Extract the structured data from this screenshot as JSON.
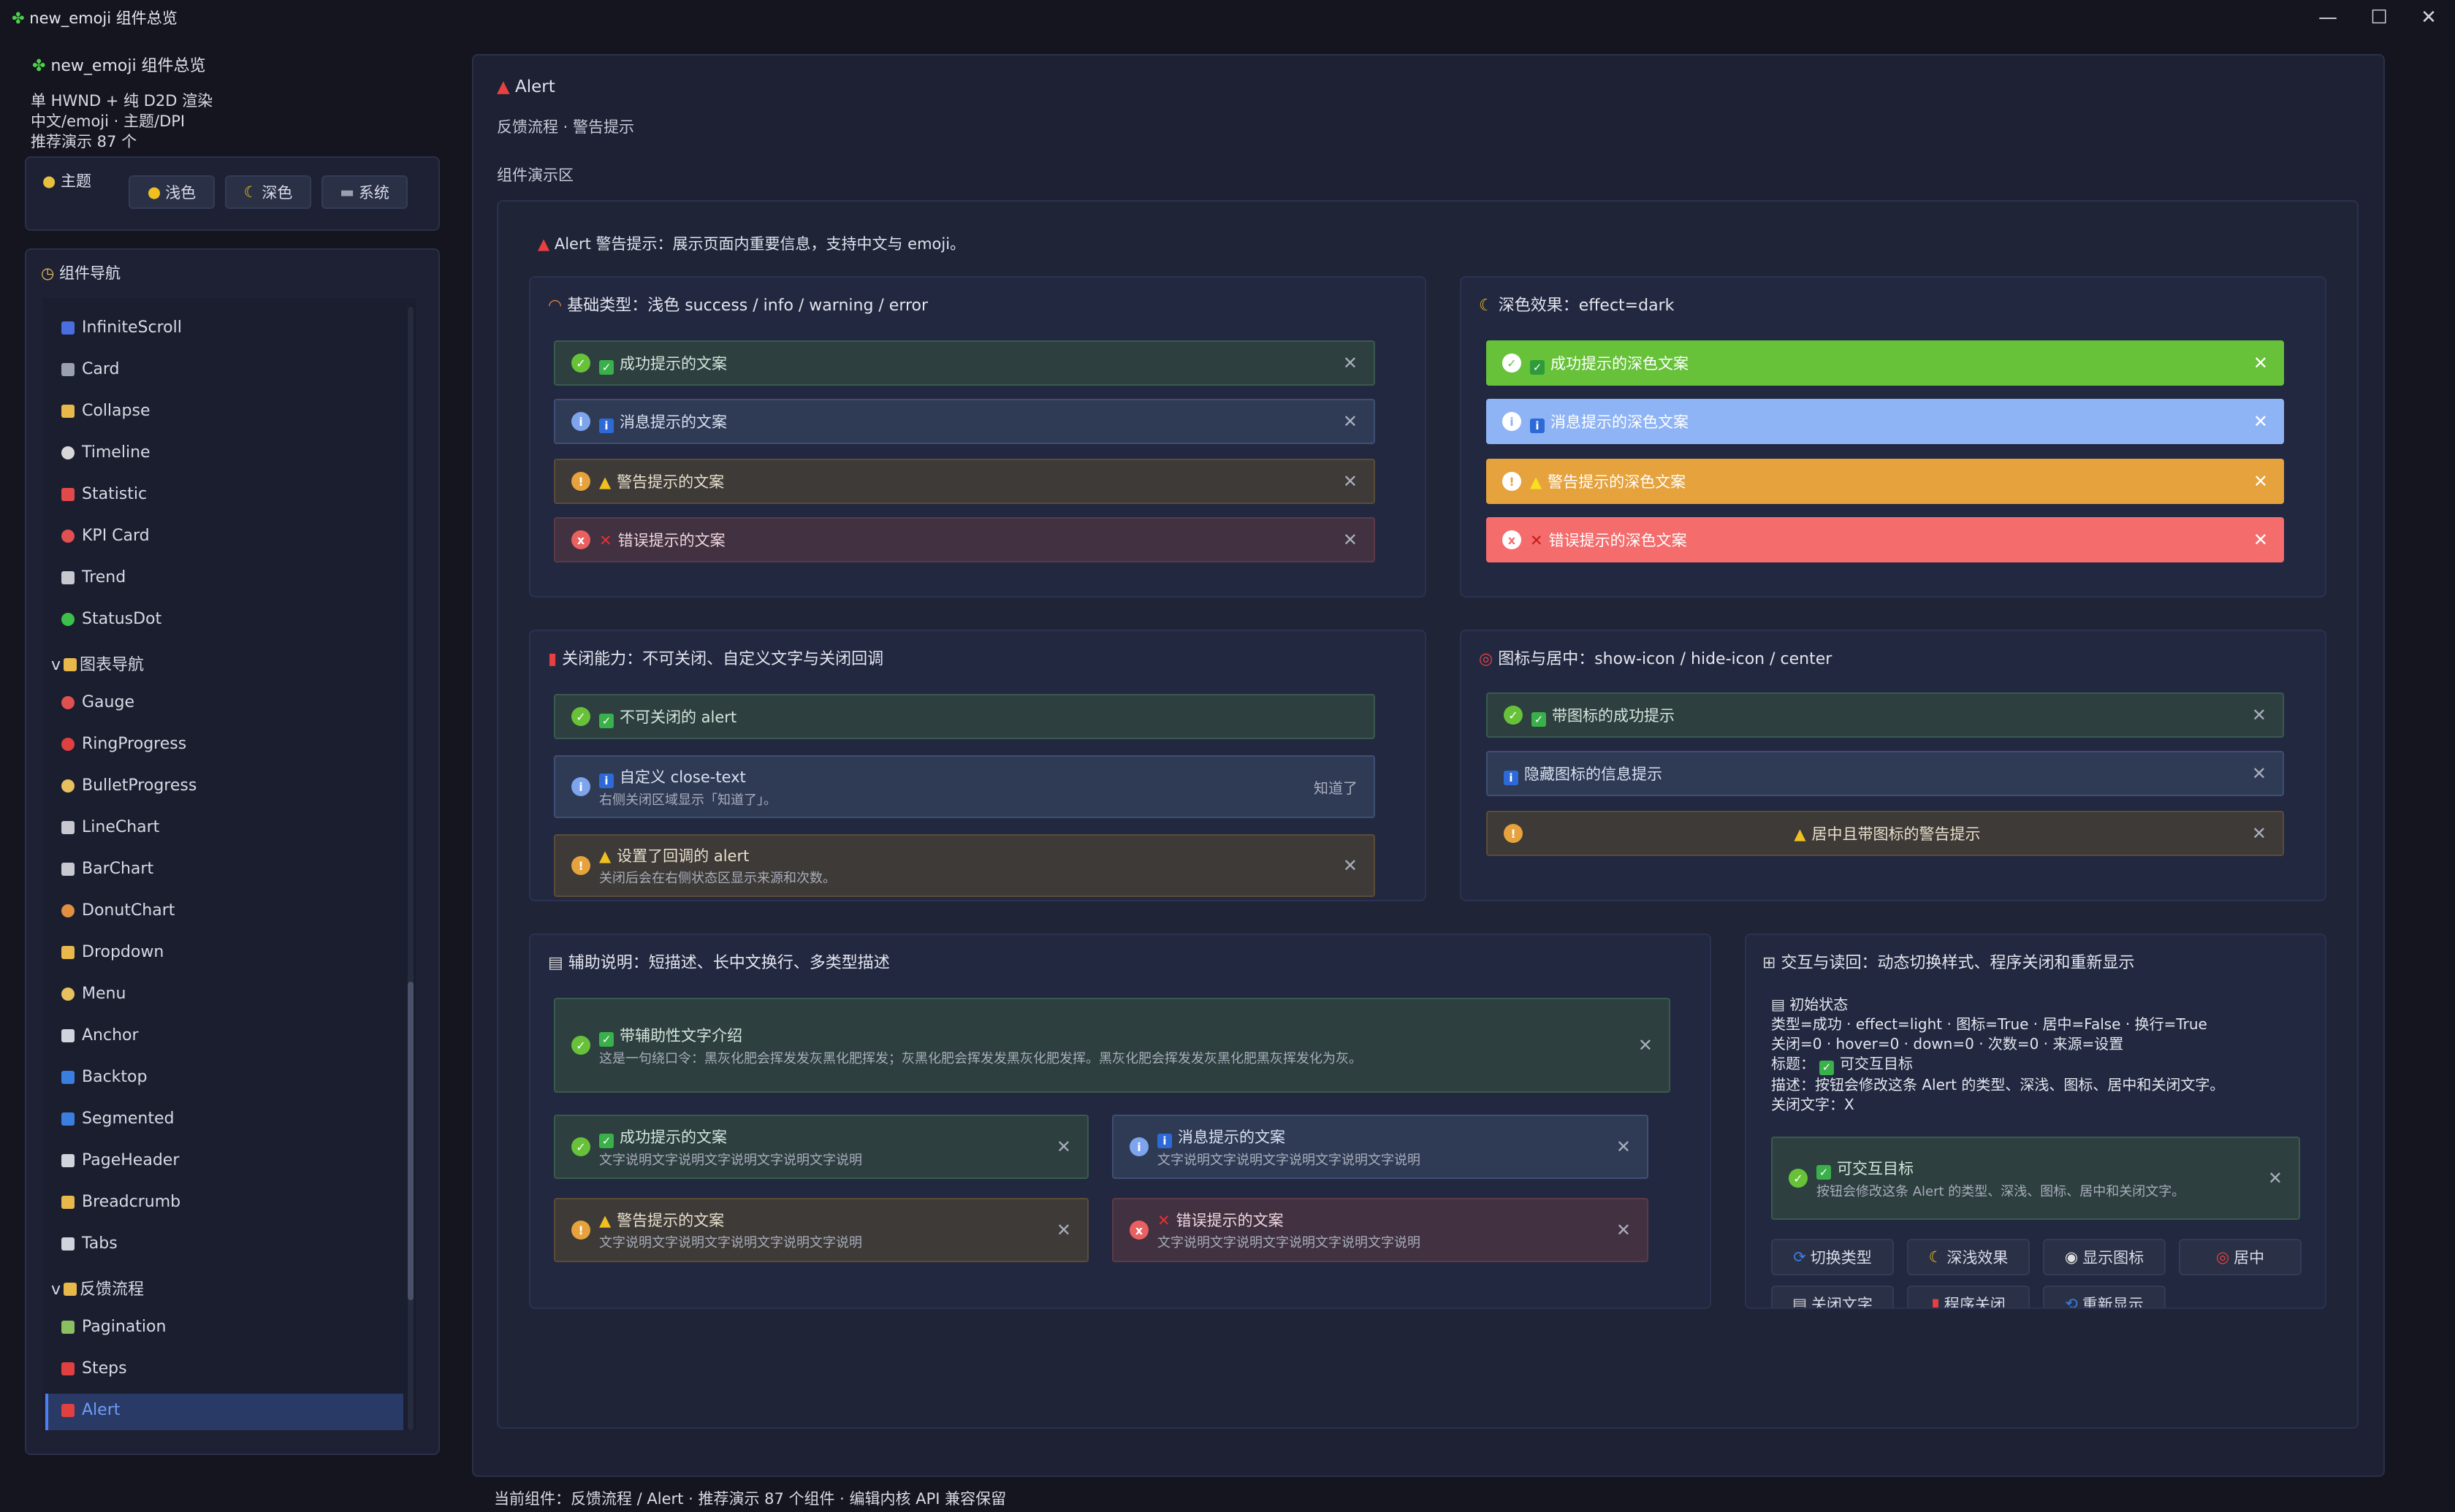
{
  "window": {
    "title": "new_emoji 组件总览",
    "minimize": "—",
    "maximize": "☐",
    "close": "✕"
  },
  "sidebar": {
    "app_title": "new_emoji 组件总览",
    "info_lines": [
      "单 HWND + 纯 D2D 渲染",
      "中文/emoji · 主题/DPI",
      "推荐演示 87 个"
    ],
    "theme": {
      "label": "主题",
      "buttons": [
        "浅色",
        "深色",
        "系统"
      ]
    },
    "nav": {
      "label": "组件导航",
      "items": [
        {
          "label": "InfiniteScroll",
          "icon": "infinity-icon",
          "color": "#4a6ee0"
        },
        {
          "label": "Card",
          "icon": "card-icon",
          "color": "#9aa0b0"
        },
        {
          "label": "Collapse",
          "icon": "folder-icon",
          "color": "#e8b84a"
        },
        {
          "label": "Timeline",
          "icon": "clock-icon",
          "color": "#d8d8d8"
        },
        {
          "label": "Statistic",
          "icon": "pin-icon",
          "color": "#e04a4a"
        },
        {
          "label": "KPI Card",
          "icon": "target-icon",
          "color": "#e05050"
        },
        {
          "label": "Trend",
          "icon": "chart-up-icon",
          "color": "#c8c8d0"
        },
        {
          "label": "StatusDot",
          "icon": "green-dot-icon",
          "color": "#3cc04a"
        },
        {
          "label": "图表导航",
          "icon": "folder-icon",
          "color": "#e8b84a",
          "group": true
        },
        {
          "label": "Gauge",
          "icon": "target-icon",
          "color": "#e05050"
        },
        {
          "label": "RingProgress",
          "icon": "ring-icon",
          "color": "#e04040"
        },
        {
          "label": "BulletProgress",
          "icon": "clock-icon",
          "color": "#e8c060"
        },
        {
          "label": "LineChart",
          "icon": "chart-up-icon",
          "color": "#c8c8d0"
        },
        {
          "label": "BarChart",
          "icon": "bar-chart-icon",
          "color": "#c8c8d0"
        },
        {
          "label": "DonutChart",
          "icon": "donut-icon",
          "color": "#e09040"
        },
        {
          "label": "Dropdown",
          "icon": "folder-icon",
          "color": "#e8b84a"
        },
        {
          "label": "Menu",
          "icon": "clock-icon",
          "color": "#e8c060"
        },
        {
          "label": "Anchor",
          "icon": "anchor-icon",
          "color": "#d0d4dc"
        },
        {
          "label": "Backtop",
          "icon": "up-arrow-icon",
          "color": "#3a7ee0"
        },
        {
          "label": "Segmented",
          "icon": "shuffle-icon",
          "color": "#3a7ee0"
        },
        {
          "label": "PageHeader",
          "icon": "page-icon",
          "color": "#d0d4dc"
        },
        {
          "label": "Breadcrumb",
          "icon": "bread-icon",
          "color": "#e8b84a"
        },
        {
          "label": "Tabs",
          "icon": "page-icon",
          "color": "#d0d4dc"
        },
        {
          "label": "反馈流程",
          "icon": "folder-icon",
          "color": "#e8b84a",
          "group": true
        },
        {
          "label": "Pagination",
          "icon": "books-icon",
          "color": "#8ac060"
        },
        {
          "label": "Steps",
          "icon": "steps-icon",
          "color": "#e04040"
        },
        {
          "label": "Alert",
          "icon": "alert-icon",
          "color": "#e04040",
          "selected": true
        }
      ]
    }
  },
  "main": {
    "title": "Alert",
    "subtitle": "反馈流程 · 警告提示",
    "demo_label": "组件演示区",
    "intro": "Alert 警告提示：展示页面内重要信息，支持中文与 emoji。",
    "basic": {
      "title": "基础类型：浅色 success / info / warning / error",
      "alerts": [
        "成功提示的文案",
        "消息提示的文案",
        "警告提示的文案",
        "错误提示的文案"
      ]
    },
    "dark": {
      "title": "深色效果：effect=dark",
      "alerts": [
        "成功提示的深色文案",
        "消息提示的深色文案",
        "警告提示的深色文案",
        "错误提示的深色文案"
      ]
    },
    "closable": {
      "title": "关闭能力：不可关闭、自定义文字与关闭回调",
      "a1": "不可关闭的 alert",
      "a2_title": "自定义 close-text",
      "a2_desc": "右侧关闭区域显示「知道了」。",
      "a2_close": "知道了",
      "a3_title": "设置了回调的 alert",
      "a3_desc": "关闭后会在右侧状态区显示来源和次数。"
    },
    "icon_center": {
      "title": "图标与居中：show-icon / hide-icon / center",
      "a1": "带图标的成功提示",
      "a2": "隐藏图标的信息提示",
      "a3": "居中且带图标的警告提示"
    },
    "desc_section": {
      "title": "辅助说明：短描述、长中文换行、多类型描述",
      "big_title": "带辅助性文字介绍",
      "big_desc": "这是一句绕口令：黑灰化肥会挥发发灰黑化肥挥发；灰黑化肥会挥发发黑灰化肥发挥。黑灰化肥会挥发发灰黑化肥黑灰挥发化为灰。",
      "cards": [
        {
          "title": "成功提示的文案",
          "desc": "文字说明文字说明文字说明文字说明文字说明"
        },
        {
          "title": "消息提示的文案",
          "desc": "文字说明文字说明文字说明文字说明文字说明"
        },
        {
          "title": "警告提示的文案",
          "desc": "文字说明文字说明文字说明文字说明文字说明"
        },
        {
          "title": "错误提示的文案",
          "desc": "文字说明文字说明文字说明文字说明文字说明"
        }
      ]
    },
    "interact": {
      "title": "交互与读回：动态切换样式、程序关闭和重新显示",
      "state_title": "初始状态",
      "state_lines": [
        "类型=成功 · effect=light · 图标=True · 居中=False · 换行=True",
        "关闭=0 · hover=0 · down=0 · 次数=0 · 来源=设置"
      ],
      "label_title": "标题：",
      "label_value": "可交互目标",
      "desc_line": "描述：按钮会修改这条 Alert 的类型、深浅、图标、居中和关闭文字。",
      "close_line": "关闭文字：X",
      "target_title": "可交互目标",
      "target_desc": "按钮会修改这条 Alert 的类型、深浅、图标、居中和关闭文字。",
      "buttons": [
        "切换类型",
        "深浅效果",
        "显示图标",
        "居中",
        "关闭文字",
        "程序关闭",
        "重新显示"
      ]
    },
    "close_symbol": "✕"
  },
  "status_bar": "当前组件：反馈流程 / Alert · 推荐演示 87 个组件 · 编辑内核 API 兼容保留"
}
